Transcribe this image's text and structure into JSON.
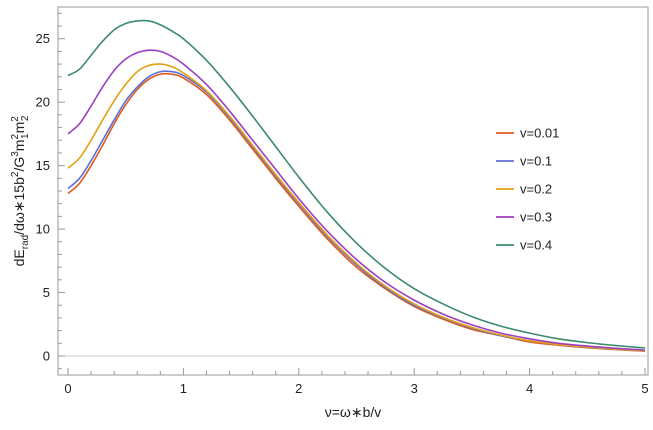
{
  "chart_data": {
    "type": "line",
    "title": "",
    "xlabel": "ν=ω∗b/v",
    "ylabel_parts": {
      "base1": "dE",
      "sub1": "rad",
      "mid1": "/dω∗15b",
      "sup1": "2",
      "mid2": "/G",
      "sup2": "3",
      "mid3": "m",
      "sub3": "1",
      "sup3": "2",
      "mid4": "m",
      "sub4": "2",
      "sup4": "2"
    },
    "xlim": [
      0,
      5
    ],
    "ylim": [
      -1.5,
      27.5
    ],
    "x_ticks": [
      0,
      1,
      2,
      3,
      4,
      5
    ],
    "y_ticks": [
      0,
      5,
      10,
      15,
      20,
      25
    ],
    "grid": false,
    "legend_position": "right",
    "series": [
      {
        "name": "v=0.01",
        "color": "#e0581c",
        "x": [
          0,
          0.1,
          0.2,
          0.3,
          0.4,
          0.5,
          0.6,
          0.7,
          0.8,
          0.9,
          1.0,
          1.2,
          1.4,
          1.6,
          1.8,
          2.0,
          2.25,
          2.5,
          2.75,
          3.0,
          3.25,
          3.5,
          3.75,
          4.0,
          4.25,
          4.5,
          4.75,
          5.0
        ],
        "values": [
          12.8,
          13.6,
          15.0,
          16.6,
          18.3,
          19.8,
          21.0,
          21.8,
          22.2,
          22.2,
          21.9,
          20.6,
          18.6,
          16.3,
          14.0,
          11.8,
          9.2,
          7.0,
          5.3,
          3.9,
          2.9,
          2.1,
          1.6,
          1.1,
          0.85,
          0.65,
          0.5,
          0.38
        ]
      },
      {
        "name": "v=0.1",
        "color": "#5b6fd8",
        "x": [
          0,
          0.1,
          0.2,
          0.3,
          0.4,
          0.5,
          0.6,
          0.7,
          0.8,
          0.9,
          1.0,
          1.2,
          1.4,
          1.6,
          1.8,
          2.0,
          2.25,
          2.5,
          2.75,
          3.0,
          3.25,
          3.5,
          3.75,
          4.0,
          4.25,
          4.5,
          4.75,
          5.0
        ],
        "values": [
          13.2,
          14.0,
          15.4,
          17.0,
          18.6,
          20.1,
          21.2,
          22.0,
          22.4,
          22.4,
          22.1,
          20.8,
          18.8,
          16.5,
          14.2,
          12.0,
          9.4,
          7.2,
          5.4,
          4.0,
          3.0,
          2.2,
          1.6,
          1.2,
          0.9,
          0.68,
          0.52,
          0.4
        ]
      },
      {
        "name": "v=0.2",
        "color": "#e2a112",
        "x": [
          0,
          0.1,
          0.2,
          0.3,
          0.4,
          0.5,
          0.6,
          0.7,
          0.8,
          0.9,
          1.0,
          1.2,
          1.4,
          1.6,
          1.8,
          2.0,
          2.25,
          2.5,
          2.75,
          3.0,
          3.25,
          3.5,
          3.75,
          4.0,
          4.25,
          4.5,
          4.75,
          5.0
        ],
        "values": [
          14.8,
          15.6,
          17.0,
          18.6,
          20.1,
          21.4,
          22.4,
          22.9,
          23.0,
          22.8,
          22.3,
          20.9,
          18.9,
          16.6,
          14.3,
          12.1,
          9.5,
          7.3,
          5.5,
          4.1,
          3.05,
          2.25,
          1.65,
          1.2,
          0.9,
          0.7,
          0.53,
          0.41
        ]
      },
      {
        "name": "v=0.3",
        "color": "#9d3fc1",
        "x": [
          0,
          0.1,
          0.2,
          0.3,
          0.4,
          0.5,
          0.6,
          0.7,
          0.8,
          0.9,
          1.0,
          1.2,
          1.4,
          1.6,
          1.8,
          2.0,
          2.25,
          2.5,
          2.75,
          3.0,
          3.25,
          3.5,
          3.75,
          4.0,
          4.25,
          4.5,
          4.75,
          5.0
        ],
        "values": [
          17.5,
          18.3,
          19.7,
          21.2,
          22.5,
          23.4,
          23.9,
          24.1,
          24.0,
          23.6,
          23.0,
          21.4,
          19.3,
          17.0,
          14.7,
          12.4,
          9.8,
          7.6,
          5.8,
          4.4,
          3.3,
          2.45,
          1.8,
          1.35,
          1.0,
          0.78,
          0.6,
          0.47
        ]
      },
      {
        "name": "v=0.4",
        "color": "#3c8a6e",
        "x": [
          0,
          0.1,
          0.2,
          0.3,
          0.4,
          0.5,
          0.6,
          0.7,
          0.8,
          0.9,
          1.0,
          1.2,
          1.4,
          1.6,
          1.8,
          2.0,
          2.25,
          2.5,
          2.75,
          3.0,
          3.25,
          3.5,
          3.75,
          4.0,
          4.25,
          4.5,
          4.75,
          5.0
        ],
        "values": [
          22.1,
          22.6,
          23.7,
          24.8,
          25.7,
          26.2,
          26.4,
          26.4,
          26.1,
          25.6,
          25.0,
          23.3,
          21.2,
          18.9,
          16.5,
          14.1,
          11.3,
          8.9,
          6.9,
          5.3,
          4.1,
          3.1,
          2.35,
          1.8,
          1.35,
          1.05,
          0.82,
          0.63
        ]
      }
    ]
  }
}
